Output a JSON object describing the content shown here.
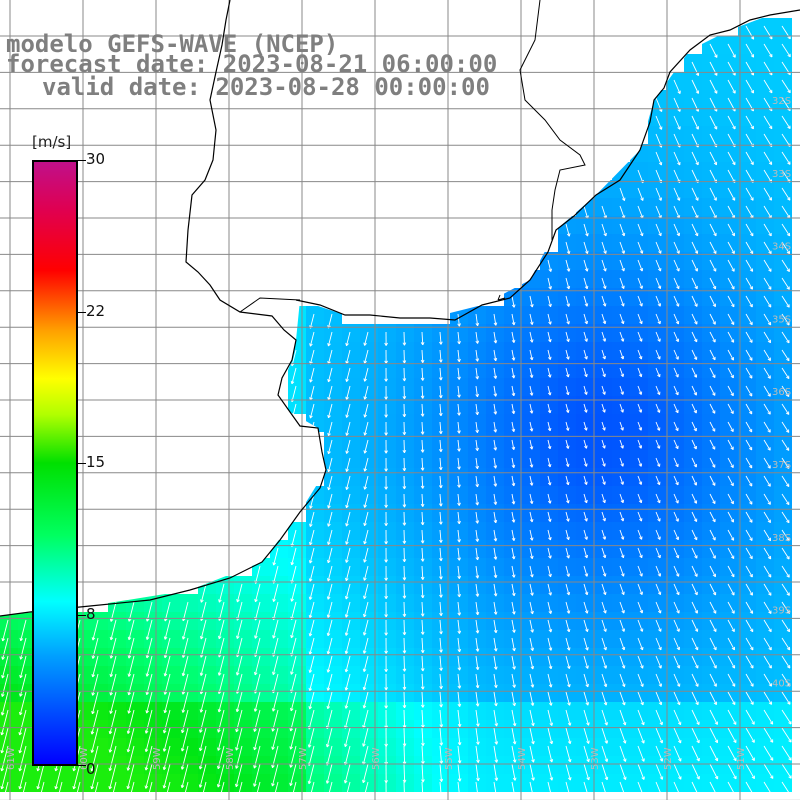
{
  "title": {
    "line1": "modelo GEFS-WAVE (NCEP)",
    "line2": "forecast date: 2023-08-21 06:00:00",
    "line3": "valid date: 2023-08-28 00:00:00"
  },
  "colorbar": {
    "unit": "[m/s]",
    "ticks": [
      "30",
      "22",
      "15",
      "8",
      "0"
    ],
    "colors": [
      "#0000ff",
      "#00a0ff",
      "#00ffff",
      "#00ff60",
      "#00e000",
      "#b0ff00",
      "#ffff00",
      "#ffa000",
      "#ff0000",
      "#c0108a"
    ]
  },
  "lat_labels": [
    "32S",
    "33S",
    "34S",
    "35S",
    "36S",
    "37S",
    "38S",
    "39S",
    "40S"
  ],
  "lon_labels": [
    "61W",
    "60W",
    "59W",
    "58W",
    "57W",
    "56W",
    "55W",
    "54W",
    "53W",
    "52W",
    "51W"
  ],
  "colors": {
    "land": "#ffffff",
    "grid": "#888888",
    "coast": "#000000",
    "arrow": "#ffffff"
  }
}
